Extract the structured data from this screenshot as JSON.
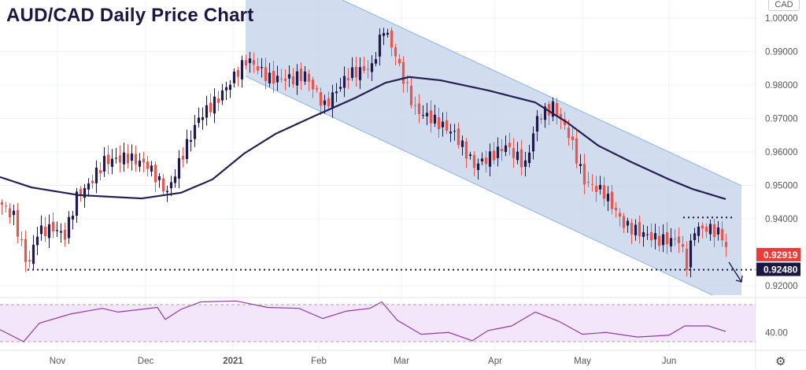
{
  "title": "AUD/CAD Daily Price Chart",
  "currency_label": "CAD",
  "settings_icon": "gear-icon",
  "colors": {
    "bull": "#1e1a4d",
    "bear": "#e8574e",
    "channel": "#c9d6ec",
    "sma": "#231f4f",
    "rsi": "#8e3c9e",
    "rsi_bg": "#f3e6fb",
    "last_price_tag": "#ef3b35",
    "level_tag": "#1b1742"
  },
  "chart_data": {
    "type": "candlestick",
    "title": "AUD/CAD Daily Price Chart",
    "y_ticks": [
      "1.00000",
      "0.99000",
      "0.98000",
      "0.97000",
      "0.96000",
      "0.95000",
      "0.94000",
      "0.92000"
    ],
    "y_tick_values": [
      1.0,
      0.99,
      0.98,
      0.97,
      0.96,
      0.95,
      0.94,
      0.92
    ],
    "ylim": [
      0.9153,
      1.0054
    ],
    "x_ticks": [
      "Nov",
      "Dec",
      "2021",
      "Feb",
      "Mar",
      "Apr",
      "May",
      "Jun"
    ],
    "x_tick_days": [
      14.6,
      37,
      59.2,
      81,
      102,
      125.8,
      148,
      170
    ],
    "total_days": 185,
    "close_keypoints": [
      [
        0,
        0.9442
      ],
      [
        3,
        0.9407
      ],
      [
        6.6,
        0.9254
      ],
      [
        9,
        0.936
      ],
      [
        13,
        0.9372
      ],
      [
        16,
        0.935
      ],
      [
        19,
        0.9466
      ],
      [
        22,
        0.9501
      ],
      [
        26,
        0.9572
      ],
      [
        32,
        0.9584
      ],
      [
        37,
        0.956
      ],
      [
        42,
        0.9478
      ],
      [
        46,
        0.9595
      ],
      [
        50,
        0.9701
      ],
      [
        55,
        0.976
      ],
      [
        60,
        0.9842
      ],
      [
        62.4,
        0.9878
      ],
      [
        68,
        0.9819
      ],
      [
        74,
        0.9819
      ],
      [
        77,
        0.9831
      ],
      [
        82,
        0.9736
      ],
      [
        88,
        0.9831
      ],
      [
        94,
        0.9854
      ],
      [
        97,
        0.9972
      ],
      [
        100,
        0.9889
      ],
      [
        102,
        0.9819
      ],
      [
        105,
        0.9725
      ],
      [
        109,
        0.9701
      ],
      [
        115,
        0.9654
      ],
      [
        120,
        0.956
      ],
      [
        124,
        0.9584
      ],
      [
        128,
        0.9619
      ],
      [
        133,
        0.956
      ],
      [
        136,
        0.9701
      ],
      [
        140,
        0.9736
      ],
      [
        144,
        0.9654
      ],
      [
        148,
        0.9513
      ],
      [
        153,
        0.9478
      ],
      [
        158,
        0.9384
      ],
      [
        162,
        0.936
      ],
      [
        167,
        0.9337
      ],
      [
        172,
        0.9337
      ],
      [
        174,
        0.9266
      ],
      [
        176,
        0.937
      ],
      [
        180,
        0.937
      ],
      [
        183,
        0.935
      ],
      [
        184.4,
        0.92919
      ]
    ],
    "sma": {
      "name": "SMA",
      "points": [
        [
          0,
          0.9525
        ],
        [
          8,
          0.9494
        ],
        [
          20,
          0.9471
        ],
        [
          36,
          0.9461
        ],
        [
          46,
          0.9478
        ],
        [
          54,
          0.9518
        ],
        [
          62,
          0.9595
        ],
        [
          70,
          0.9654
        ],
        [
          80,
          0.9708
        ],
        [
          90,
          0.976
        ],
        [
          98,
          0.9807
        ],
        [
          104,
          0.9824
        ],
        [
          112,
          0.9814
        ],
        [
          124,
          0.9784
        ],
        [
          136,
          0.9748
        ],
        [
          144,
          0.9689
        ],
        [
          152,
          0.9619
        ],
        [
          160,
          0.9572
        ],
        [
          170,
          0.9518
        ],
        [
          176,
          0.9489
        ],
        [
          184.4,
          0.9459
        ]
      ]
    },
    "channel": {
      "upper": [
        [
          87,
          1.0054
        ],
        [
          188.4,
          0.9499
        ]
      ],
      "lower": [
        [
          62.4,
          0.9826
        ],
        [
          181,
          0.9172
        ]
      ]
    },
    "last_price": "0.92919",
    "support_level": "0.92480",
    "support_value": 0.9248,
    "resistance_value": 0.9404,
    "rsi": {
      "label": "40.00",
      "upper": 70,
      "lower": 30,
      "points": [
        [
          0,
          43
        ],
        [
          6,
          30
        ],
        [
          10,
          50
        ],
        [
          18,
          60
        ],
        [
          26,
          66
        ],
        [
          30,
          62
        ],
        [
          40,
          67
        ],
        [
          42,
          54
        ],
        [
          46,
          65
        ],
        [
          51,
          73
        ],
        [
          60,
          74
        ],
        [
          68,
          67
        ],
        [
          76,
          66
        ],
        [
          82,
          55
        ],
        [
          88,
          63
        ],
        [
          94,
          66
        ],
        [
          97,
          73
        ],
        [
          101,
          53
        ],
        [
          107,
          38
        ],
        [
          114,
          40
        ],
        [
          120,
          31
        ],
        [
          124,
          42
        ],
        [
          130,
          47
        ],
        [
          136,
          62
        ],
        [
          142,
          52
        ],
        [
          148,
          38
        ],
        [
          154,
          40
        ],
        [
          162,
          35
        ],
        [
          170,
          37
        ],
        [
          174,
          47
        ],
        [
          180,
          47
        ],
        [
          184.4,
          41
        ]
      ]
    }
  }
}
